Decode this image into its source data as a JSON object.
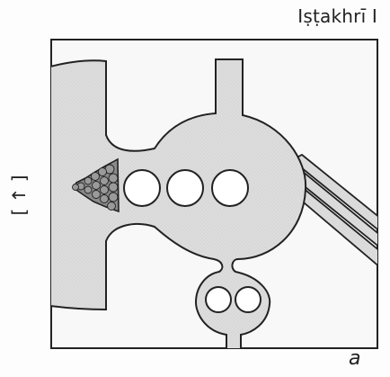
{
  "title": "Iṣṭakhrī I",
  "figure_label": "a",
  "side_marker": "[ ↑ ]",
  "colors": {
    "sea_fill": "#dcdcdc",
    "outline": "#222222",
    "frame_fill": "#f7f7f7",
    "city_dots": "#777777"
  }
}
